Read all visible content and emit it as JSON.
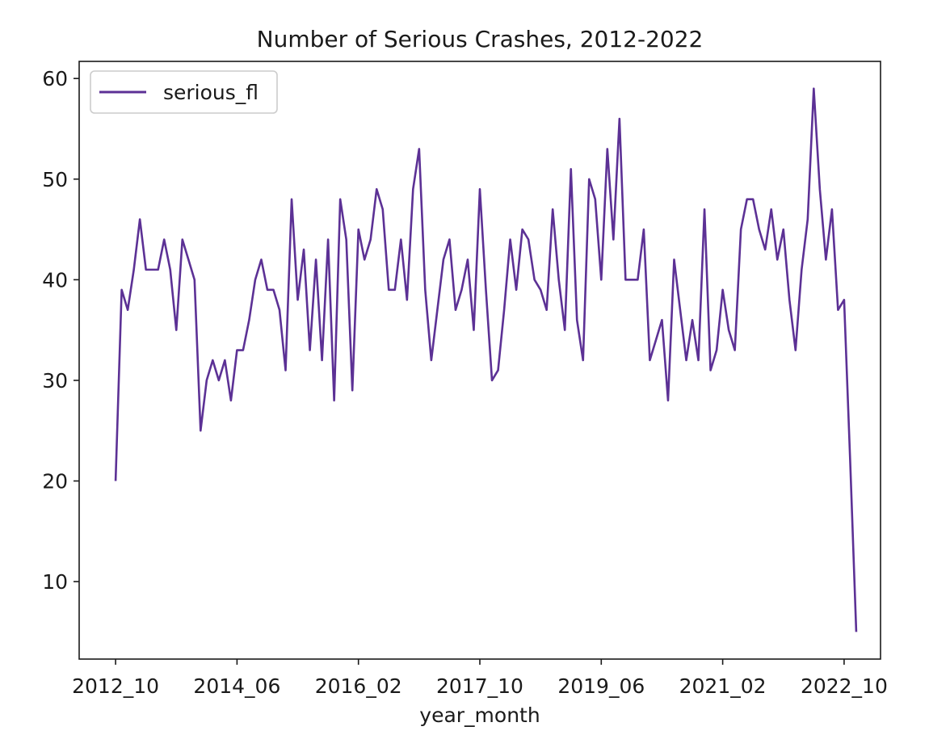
{
  "chart_data": {
    "type": "line",
    "title": "Number of Serious Crashes, 2012-2022",
    "xlabel": "year_month",
    "ylabel": "",
    "x_tick_labels": [
      "2012_10",
      "2014_06",
      "2016_02",
      "2017_10",
      "2019_06",
      "2021_02",
      "2022_10"
    ],
    "y_tick_labels": [
      "10",
      "20",
      "30",
      "40",
      "50",
      "60"
    ],
    "x_tick_indices": [
      0,
      20,
      40,
      60,
      80,
      100,
      120
    ],
    "y_ticks": [
      10,
      20,
      30,
      40,
      50,
      60
    ],
    "xlim": [
      -6,
      126
    ],
    "ylim": [
      2.3,
      61.7
    ],
    "grid": false,
    "legend_position": "top-left",
    "series": [
      {
        "name": "serious_fl",
        "color": "#5c3195",
        "values": [
          20,
          39,
          37,
          41,
          46,
          41,
          41,
          41,
          44,
          41,
          35,
          44,
          42,
          40,
          25,
          30,
          32,
          30,
          32,
          28,
          33,
          33,
          36,
          40,
          42,
          39,
          39,
          37,
          31,
          48,
          38,
          43,
          33,
          42,
          32,
          44,
          28,
          48,
          44,
          29,
          45,
          42,
          44,
          49,
          47,
          39,
          39,
          44,
          38,
          49,
          53,
          39,
          32,
          37,
          42,
          44,
          37,
          39,
          42,
          35,
          49,
          39,
          30,
          31,
          37,
          44,
          39,
          45,
          44,
          40,
          39,
          37,
          47,
          40,
          35,
          51,
          36,
          32,
          50,
          48,
          40,
          53,
          44,
          56,
          40,
          40,
          40,
          45,
          32,
          34,
          36,
          28,
          42,
          37,
          32,
          36,
          32,
          47,
          31,
          33,
          39,
          35,
          33,
          45,
          48,
          48,
          45,
          43,
          47,
          42,
          45,
          38,
          33,
          41,
          46,
          59,
          49,
          42,
          47,
          37,
          38,
          22,
          5
        ]
      }
    ]
  }
}
